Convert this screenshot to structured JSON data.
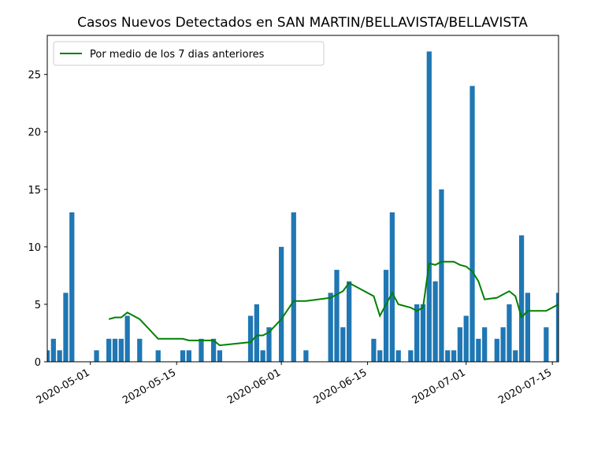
{
  "chart_data": {
    "type": "bar",
    "title": "Casos Nuevos Detectados en SAN MARTIN/BELLAVISTA/BELLAVISTA",
    "xlim": [
      "2020-04-24",
      "2020-07-16"
    ],
    "xticks": [
      "2020-05-01",
      "2020-05-15",
      "2020-06-01",
      "2020-06-15",
      "2020-07-01",
      "2020-07-15"
    ],
    "ylim": [
      0,
      28.4
    ],
    "yticks": [
      0,
      5,
      10,
      15,
      20,
      25
    ],
    "legend": "upper left",
    "series": [
      {
        "type": "bar",
        "color": "#1f77b4",
        "x": [
          "2020-04-24",
          "2020-04-25",
          "2020-04-26",
          "2020-04-27",
          "2020-04-28",
          "2020-05-02",
          "2020-05-04",
          "2020-05-05",
          "2020-05-06",
          "2020-05-07",
          "2020-05-09",
          "2020-05-12",
          "2020-05-16",
          "2020-05-17",
          "2020-05-19",
          "2020-05-21",
          "2020-05-22",
          "2020-05-27",
          "2020-05-28",
          "2020-05-29",
          "2020-05-30",
          "2020-06-01",
          "2020-06-03",
          "2020-06-05",
          "2020-06-09",
          "2020-06-10",
          "2020-06-11",
          "2020-06-12",
          "2020-06-16",
          "2020-06-17",
          "2020-06-18",
          "2020-06-19",
          "2020-06-20",
          "2020-06-22",
          "2020-06-23",
          "2020-06-24",
          "2020-06-25",
          "2020-06-26",
          "2020-06-27",
          "2020-06-28",
          "2020-06-29",
          "2020-06-30",
          "2020-07-01",
          "2020-07-02",
          "2020-07-03",
          "2020-07-04",
          "2020-07-06",
          "2020-07-07",
          "2020-07-08",
          "2020-07-09",
          "2020-07-10",
          "2020-07-11",
          "2020-07-14",
          "2020-07-16"
        ],
        "values": [
          1,
          2,
          1,
          6,
          13,
          1,
          2,
          2,
          2,
          4,
          2,
          1,
          1,
          1,
          2,
          2,
          1,
          4,
          5,
          1,
          3,
          10,
          13,
          1,
          6,
          8,
          3,
          7,
          2,
          1,
          8,
          13,
          1,
          1,
          5,
          5,
          27,
          7,
          15,
          1,
          1,
          3,
          4,
          24,
          2,
          3,
          2,
          3,
          5,
          1,
          11,
          6,
          3,
          6
        ]
      },
      {
        "type": "line",
        "name": "Por medio de los 7 dias anteriores",
        "color": "#008000",
        "x": [
          "2020-05-04",
          "2020-05-05",
          "2020-05-06",
          "2020-05-07",
          "2020-05-09",
          "2020-05-12",
          "2020-05-16",
          "2020-05-17",
          "2020-05-19",
          "2020-05-21",
          "2020-05-22",
          "2020-05-27",
          "2020-05-28",
          "2020-05-29",
          "2020-05-30",
          "2020-06-01",
          "2020-06-03",
          "2020-06-05",
          "2020-06-09",
          "2020-06-10",
          "2020-06-11",
          "2020-06-12",
          "2020-06-16",
          "2020-06-17",
          "2020-06-18",
          "2020-06-19",
          "2020-06-20",
          "2020-06-22",
          "2020-06-23",
          "2020-06-24",
          "2020-06-25",
          "2020-06-26",
          "2020-06-27",
          "2020-06-28",
          "2020-06-29",
          "2020-06-30",
          "2020-07-01",
          "2020-07-02",
          "2020-07-03",
          "2020-07-04",
          "2020-07-06",
          "2020-07-07",
          "2020-07-08",
          "2020-07-09",
          "2020-07-10",
          "2020-07-11",
          "2020-07-14",
          "2020-07-16"
        ],
        "values": [
          3.71,
          3.86,
          3.86,
          4.29,
          3.71,
          2.0,
          2.0,
          1.86,
          1.86,
          1.86,
          1.43,
          1.71,
          2.29,
          2.29,
          2.57,
          3.71,
          5.29,
          5.29,
          5.57,
          5.86,
          6.14,
          6.86,
          5.71,
          4.0,
          5.0,
          6.0,
          5.0,
          4.71,
          4.43,
          4.71,
          8.57,
          8.43,
          8.71,
          8.71,
          8.71,
          8.43,
          8.29,
          7.86,
          7.0,
          5.43,
          5.57,
          5.86,
          6.14,
          5.71,
          3.86,
          4.43,
          4.43,
          5.0
        ]
      }
    ]
  }
}
